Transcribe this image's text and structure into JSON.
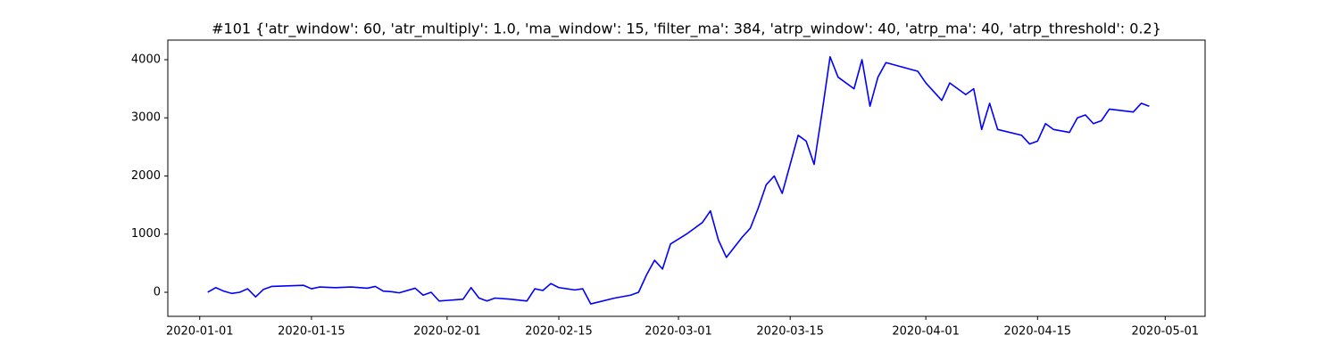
{
  "chart_data": {
    "type": "line",
    "title": "#101 {'atr_window': 60, 'atr_multiply': 1.0, 'ma_window': 15, 'filter_ma': 384, 'atrp_window': 40, 'atrp_ma': 40, 'atrp_threshold': 0.2}",
    "x": [
      "2020-01-02",
      "2020-01-03",
      "2020-01-04",
      "2020-01-05",
      "2020-01-06",
      "2020-01-07",
      "2020-01-08",
      "2020-01-09",
      "2020-01-10",
      "2020-01-12",
      "2020-01-14",
      "2020-01-15",
      "2020-01-16",
      "2020-01-18",
      "2020-01-20",
      "2020-01-22",
      "2020-01-23",
      "2020-01-24",
      "2020-01-25",
      "2020-01-26",
      "2020-01-28",
      "2020-01-29",
      "2020-01-30",
      "2020-01-31",
      "2020-02-01",
      "2020-02-03",
      "2020-02-04",
      "2020-02-05",
      "2020-02-06",
      "2020-02-07",
      "2020-02-09",
      "2020-02-11",
      "2020-02-12",
      "2020-02-13",
      "2020-02-14",
      "2020-02-15",
      "2020-02-17",
      "2020-02-18",
      "2020-02-19",
      "2020-02-22",
      "2020-02-24",
      "2020-02-25",
      "2020-02-26",
      "2020-02-27",
      "2020-02-28",
      "2020-02-29",
      "2020-03-02",
      "2020-03-03",
      "2020-03-04",
      "2020-03-05",
      "2020-03-06",
      "2020-03-07",
      "2020-03-09",
      "2020-03-10",
      "2020-03-11",
      "2020-03-12",
      "2020-03-13",
      "2020-03-14",
      "2020-03-16",
      "2020-03-17",
      "2020-03-18",
      "2020-03-19",
      "2020-03-20",
      "2020-03-21",
      "2020-03-23",
      "2020-03-24",
      "2020-03-25",
      "2020-03-26",
      "2020-03-27",
      "2020-03-31",
      "2020-04-01",
      "2020-04-03",
      "2020-04-04",
      "2020-04-06",
      "2020-04-07",
      "2020-04-08",
      "2020-04-09",
      "2020-04-10",
      "2020-04-13",
      "2020-04-14",
      "2020-04-15",
      "2020-04-16",
      "2020-04-17",
      "2020-04-19",
      "2020-04-20",
      "2020-04-21",
      "2020-04-22",
      "2020-04-23",
      "2020-04-24",
      "2020-04-27",
      "2020-04-28",
      "2020-04-29"
    ],
    "series": [
      {
        "color": "#0000ff",
        "values": [
          0,
          80,
          20,
          -20,
          0,
          60,
          -80,
          50,
          100,
          110,
          120,
          60,
          90,
          80,
          90,
          70,
          100,
          20,
          10,
          -10,
          70,
          -50,
          0,
          -150,
          -140,
          -120,
          80,
          -100,
          -150,
          -100,
          -120,
          -150,
          60,
          30,
          150,
          80,
          40,
          60,
          -200,
          -100,
          -50,
          0,
          300,
          550,
          400,
          830,
          1000,
          1100,
          1200,
          1400,
          900,
          600,
          950,
          1100,
          1450,
          1850,
          2000,
          1700,
          2700,
          2600,
          2200,
          3100,
          4050,
          3700,
          3500,
          4000,
          3200,
          3700,
          3950,
          3800,
          3600,
          3300,
          3600,
          3400,
          3500,
          2800,
          3250,
          2800,
          2700,
          2550,
          2600,
          2900,
          2800,
          2750,
          3000,
          3050,
          2900,
          2950,
          3150,
          3100,
          3250,
          3200
        ]
      }
    ],
    "xlim": [
      "2019-12-28",
      "2020-05-06"
    ],
    "xticks": [
      "2020-01-01",
      "2020-01-15",
      "2020-02-01",
      "2020-02-15",
      "2020-03-01",
      "2020-03-15",
      "2020-04-01",
      "2020-04-15",
      "2020-05-01"
    ],
    "ylim": [
      -414,
      4337
    ],
    "yticks": [
      0,
      1000,
      2000,
      3000,
      4000
    ]
  }
}
